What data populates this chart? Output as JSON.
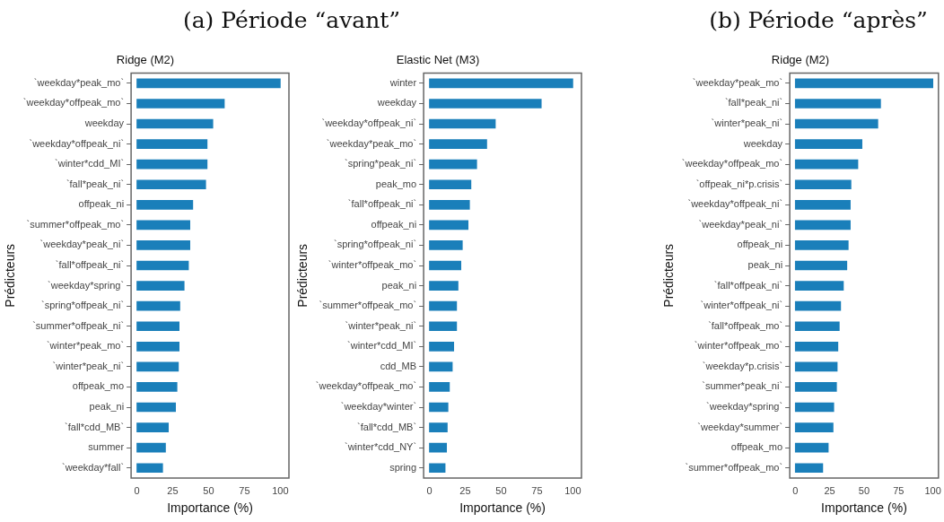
{
  "chart_data": [
    {
      "type": "bar",
      "orientation": "horizontal",
      "title": "Ridge (M2)",
      "xlabel": "Importance (%)",
      "ylabel": "Prédicteurs",
      "annotations": [
        "(a) Période “avant”"
      ],
      "categories": [
        "`weekday*peak_mo`",
        "`weekday*offpeak_mo`",
        "weekday",
        "`weekday*offpeak_ni`",
        "`winter*cdd_MI`",
        "`fall*peak_ni`",
        "offpeak_ni",
        "`summer*offpeak_mo`",
        "`weekday*peak_ni`",
        "`fall*offpeak_ni`",
        "`weekday*spring`",
        "`spring*offpeak_ni`",
        "`summer*offpeak_ni`",
        "`winter*peak_mo`",
        "`winter*peak_ni`",
        "offpeak_mo",
        "peak_ni",
        "`fall*cdd_MB`",
        "summer",
        "`weekday*fall`"
      ],
      "values": [
        100,
        61,
        53,
        49,
        49,
        48,
        39,
        37,
        37,
        36,
        33,
        30,
        29.5,
        29.5,
        29,
        28,
        27,
        22,
        20,
        18
      ],
      "color": "#1a7fba",
      "xlim": [
        -4,
        106
      ],
      "xticks": [
        0,
        25,
        50,
        75,
        100
      ],
      "grid": false,
      "legend": false
    },
    {
      "type": "bar",
      "orientation": "horizontal",
      "title": "Elastic Net (M3)",
      "xlabel": "Importance (%)",
      "ylabel": "Prédicteurs",
      "categories": [
        "winter",
        "weekday",
        "`weekday*offpeak_ni`",
        "`weekday*peak_mo`",
        "`spring*peak_ni`",
        "peak_mo",
        "`fall*offpeak_ni`",
        "offpeak_ni",
        "`spring*offpeak_ni`",
        "`winter*offpeak_mo`",
        "peak_ni",
        "`summer*offpeak_mo`",
        "`winter*peak_ni`",
        "`winter*cdd_MI`",
        "cdd_MB",
        "`weekday*offpeak_mo`",
        "`weekday*winter`",
        "`fall*cdd_MB`",
        "`winter*cdd_NY`",
        "spring"
      ],
      "values": [
        100,
        78,
        46,
        40,
        33,
        29,
        28,
        27,
        23,
        22,
        20,
        19,
        19,
        17,
        16,
        14,
        13,
        12.5,
        12,
        11
      ],
      "color": "#1a7fba",
      "xlim": [
        -4,
        106
      ],
      "xticks": [
        0,
        25,
        50,
        75,
        100
      ],
      "grid": false,
      "legend": false
    },
    {
      "type": "bar",
      "orientation": "horizontal",
      "title": "Ridge (M2)",
      "xlabel": "Importance (%)",
      "ylabel": "Prédicteurs",
      "annotations": [
        "(b) Période “après”"
      ],
      "categories": [
        "`weekday*peak_mo`",
        "`fall*peak_ni`",
        "`winter*peak_ni`",
        "weekday",
        "`weekday*offpeak_mo`",
        "`offpeak_ni*p.crisis`",
        "`weekday*offpeak_ni`",
        "`weekday*peak_ni`",
        "offpeak_ni",
        "peak_ni",
        "`fall*offpeak_ni`",
        "`winter*offpeak_ni`",
        "`fall*offpeak_mo`",
        "`winter*offpeak_mo`",
        "`weekday*p.crisis`",
        "`summer*peak_ni`",
        "`weekday*spring`",
        "`weekday*summer`",
        "offpeak_mo",
        "`summer*offpeak_mo`"
      ],
      "values": [
        100,
        62,
        60,
        48.5,
        45.5,
        40.5,
        40,
        40,
        38.5,
        37.5,
        35,
        33,
        32,
        31,
        30.5,
        30,
        28,
        27.5,
        24,
        20
      ],
      "color": "#1a7fba",
      "xlim": [
        -4,
        104
      ],
      "xticks": [
        0,
        25,
        50,
        75,
        100
      ],
      "grid": false,
      "legend": false
    }
  ]
}
